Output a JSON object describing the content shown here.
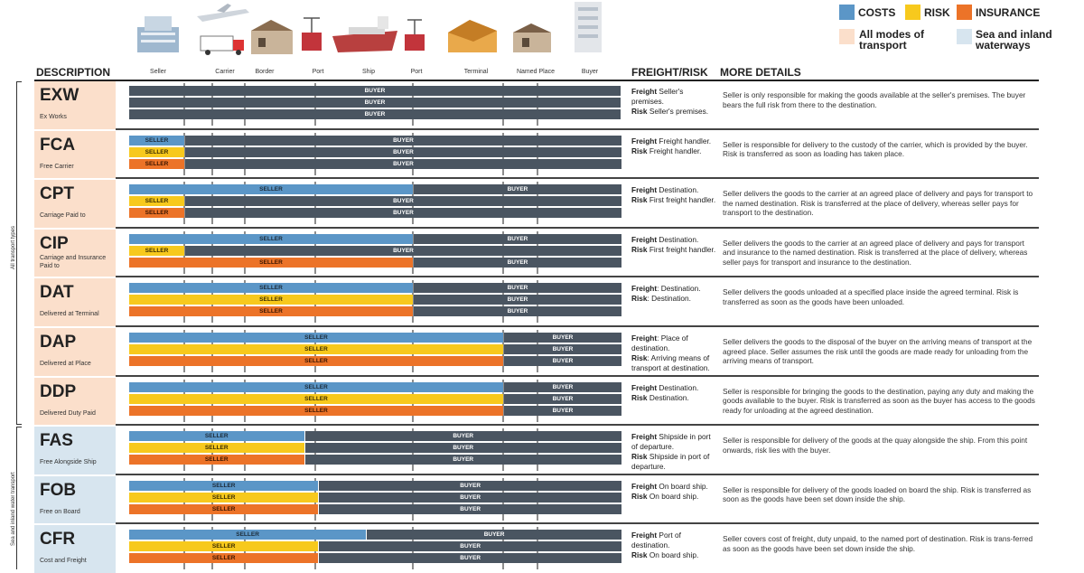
{
  "legend": {
    "costs": "COSTS",
    "risk": "RISK",
    "insurance": "INSURANCE",
    "all_modes": "All modes of\ntransport",
    "sea": "Sea and inland\nwaterways"
  },
  "colors": {
    "costs": "#5b96c7",
    "risk": "#f7c91d",
    "insurance": "#ec7328",
    "buyer": "#4a5561",
    "all_modes_bg": "#fbdfcb",
    "sea_bg": "#d7e5ef"
  },
  "headers": {
    "description": "DESCRIPTION",
    "freight_risk": "FREIGHT/RISK",
    "more_details": "MORE DETAILS"
  },
  "stages": [
    "Seller",
    "Carrier",
    "Border",
    "Port",
    "Ship",
    "Port",
    "Terminal",
    "Named Place",
    "Buyer"
  ],
  "side_labels": {
    "all": "All transport types",
    "sea": "Sea and inland water transport"
  },
  "party": {
    "seller": "SELLER",
    "buyer": "BUYER"
  },
  "terms": [
    {
      "code": "EXW",
      "name": "Ex Works",
      "group": "all",
      "costs_split": 0,
      "risk_split": 0,
      "ins_split": 0,
      "freight_parts": [
        [
          "Freight",
          "Seller's premises."
        ],
        [
          "Risk",
          "Seller's premises."
        ]
      ],
      "details": "Seller is only responsible for making the goods available at the seller's premises. The buyer bears the full risk from there to the destination."
    },
    {
      "code": "FCA",
      "name": "Free Carrier",
      "group": "all",
      "costs_split": 1,
      "risk_split": 1,
      "ins_split": 1,
      "freight_parts": [
        [
          "Freight",
          "Freight handler."
        ],
        [
          "Risk",
          "Freight handler."
        ]
      ],
      "details": "Seller is responsible for delivery to the custody of the carrier, which is provided by the buyer. Risk is transferred as soon as loading has taken place."
    },
    {
      "code": "CPT",
      "name": "Carriage Paid to",
      "group": "all",
      "costs_split": 7,
      "risk_split": 1,
      "ins_split": 1,
      "freight_parts": [
        [
          "Freight",
          " Destination."
        ],
        [
          "Risk",
          "First freight handler."
        ]
      ],
      "details": "Seller delivers the goods to the carrier at an agreed place of delivery and pays for transport to the named destination. Risk is transferred at the place of delivery, whereas seller pays for transport to the destination."
    },
    {
      "code": "CIP",
      "name": "Carriage and Insurance\nPaid to",
      "group": "all",
      "costs_split": 7,
      "risk_split": 1,
      "ins_split": 7,
      "freight_parts": [
        [
          "Freight",
          " Destination."
        ],
        [
          "Risk",
          "First freight handler."
        ]
      ],
      "details": "Seller delivers the goods to the carrier at an agreed place of delivery and pays for transport and insurance to the named destination. Risk is transferred at the place of delivery, whereas seller pays for transport and insurance to the destination."
    },
    {
      "code": "DAT",
      "name": "Delivered at Terminal",
      "group": "all",
      "costs_split": 7,
      "risk_split": 7,
      "ins_split": 7,
      "freight_parts": [
        [
          "Freight",
          ": Destination."
        ],
        [
          "Risk",
          ": Destination."
        ]
      ],
      "details": "Seller delivers the goods unloaded at a specified place inside the agreed terminal. Risk is transferred as soon as the goods have been unloaded."
    },
    {
      "code": "DAP",
      "name": "Delivered at Place",
      "group": "all",
      "costs_split": 8,
      "risk_split": 8,
      "ins_split": 8,
      "freight_parts": [
        [
          "Freight",
          ": Place of destination."
        ],
        [
          "Risk",
          ": Arriving means of transport at destination."
        ]
      ],
      "details": "Seller delivers the goods to the disposal of the buyer on the arriving means of transport at the agreed place. Seller assumes the risk until the goods are made ready for unloading from the arriving means of transport."
    },
    {
      "code": "DDP",
      "name": "Delivered Duty Paid",
      "group": "all",
      "costs_split": 8,
      "risk_split": 8,
      "ins_split": 8,
      "freight_parts": [
        [
          "Freight",
          " Destination."
        ],
        [
          "Risk",
          " Destination."
        ]
      ],
      "details": "Seller is responsible for bringing the goods to the destination, paying any duty and making the goods available to the buyer. Risk is transferred as soon as the buyer has access to the goods ready for unloading at the agreed destination."
    },
    {
      "code": "FAS",
      "name": "Free Alongside Ship",
      "group": "sea",
      "costs_split": 4.5,
      "risk_split": 4.5,
      "ins_split": 4.5,
      "freight_parts": [
        [
          "Freight",
          " Shipside in port of departure."
        ],
        [
          "Risk",
          " Shipside in port of departure."
        ]
      ],
      "details": "Seller is responsible for delivery of the goods at the quay alongside the ship. From this point onwards, risk lies with the buyer."
    },
    {
      "code": "FOB",
      "name": "Free on Board",
      "group": "sea",
      "costs_split": 5.1,
      "risk_split": 5.1,
      "ins_split": 5.1,
      "freight_parts": [
        [
          "Freight",
          " On board ship."
        ],
        [
          "Risk",
          " On board ship."
        ]
      ],
      "details": "Seller is responsible for delivery of the goods loaded on board the ship. Risk is transferred as soon as the goods have been set down inside the ship."
    },
    {
      "code": "CFR",
      "name": "Cost and Freight",
      "group": "sea",
      "costs_split": 6.3,
      "risk_split": 5.1,
      "ins_split": 5.1,
      "freight_parts": [
        [
          "Freight",
          " Port of destination."
        ],
        [
          "Risk",
          " On board ship."
        ]
      ],
      "details": "Seller covers cost of freight, duty unpaid, to the named port of destination. Risk is trans-ferred as soon as the goods have been set down inside the ship."
    }
  ]
}
